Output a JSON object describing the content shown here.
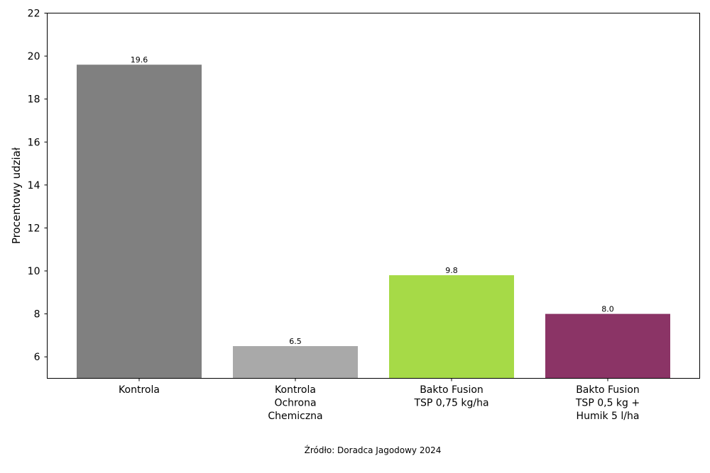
{
  "chart_data": {
    "type": "bar",
    "categories": [
      [
        "Kontrola"
      ],
      [
        "Kontrola",
        "Ochrona",
        "Chemiczna"
      ],
      [
        "Bakto Fusion",
        "TSP 0,75 kg/ha"
      ],
      [
        "Bakto Fusion",
        "TSP 0,5 kg +",
        "Humik 5 l/ha"
      ]
    ],
    "values": [
      19.6,
      6.5,
      9.8,
      8.0
    ],
    "value_labels": [
      "19.6",
      "6.5",
      "9.8",
      "8.0"
    ],
    "colors": [
      "#808080",
      "#a9a9a9",
      "#a6da47",
      "#8b3466"
    ],
    "ylabel": "Procentowy udział",
    "xlabel": "",
    "ylim": [
      5,
      22
    ],
    "yticks": [
      6,
      8,
      10,
      12,
      14,
      16,
      18,
      20,
      22
    ],
    "grid": false,
    "legend": "none"
  },
  "footer": {
    "source": "Źródło: Doradca Jagodowy 2024"
  }
}
